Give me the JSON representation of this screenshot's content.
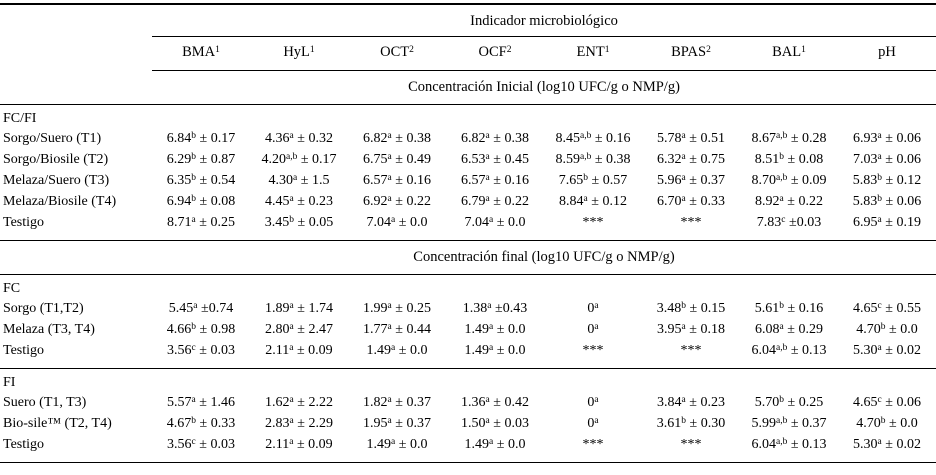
{
  "table": {
    "title": "Indicador microbiológico",
    "columns": [
      "BMA^1^",
      "HyL^1^",
      "OCT^2^",
      "OCF^2^",
      "ENT^1^",
      "BPAS^2^",
      "BAL^1^",
      "pH"
    ],
    "sections": [
      {
        "header": "Concentración Inicial (log10 UFC/g o NMP/g)",
        "groups": [
          {
            "label": "FC/FI",
            "rows": [
              {
                "label": "Sorgo/Suero (T1)",
                "cells": [
                  "6.84^b^ ± 0.17",
                  "4.36^a^ ± 0.32",
                  "6.82^a^ ± 0.38",
                  "6.82^a^ ± 0.38",
                  "8.45^a,b^ ± 0.16",
                  "5.78^a^ ± 0.51",
                  "8.67^a,b^ ± 0.28",
                  "6.93^a^ ± 0.06"
                ]
              },
              {
                "label": "Sorgo/Biosile (T2)",
                "cells": [
                  "6.29^b^ ± 0.87",
                  "4.20^a,b^ ± 0.17",
                  "6.75^a^ ± 0.49",
                  "6.53^a^ ± 0.45",
                  "8.59^a,b^ ± 0.38",
                  "6.32^a^ ± 0.75",
                  "8.51^b^ ± 0.08",
                  "7.03^a^ ± 0.06"
                ]
              },
              {
                "label": "Melaza/Suero (T3)",
                "cells": [
                  "6.35^b^ ± 0.54",
                  "4.30^a^ ± 1.5",
                  "6.57^a^ ± 0.16",
                  "6.57^a^ ± 0.16",
                  "7.65^b^ ± 0.57",
                  "5.96^a^ ± 0.37",
                  "8.70^a,b^ ± 0.09",
                  "5.83^b^ ± 0.12"
                ]
              },
              {
                "label": "Melaza/Biosile (T4)",
                "cells": [
                  "6.94^b^ ± 0.08",
                  "4.45^a^ ± 0.23",
                  "6.92^a^ ± 0.22",
                  "6.79^a^ ± 0.22",
                  "8.84^a^ ± 0.12",
                  "6.70^a^ ± 0.33",
                  "8.92^a^ ± 0.22",
                  "5.83^b^ ± 0.06"
                ]
              },
              {
                "label": "Testigo",
                "cells": [
                  "8.71^a^ ± 0.25",
                  "3.45^b^ ± 0.05",
                  "7.04^a^ ± 0.0",
                  "7.04^a^ ± 0.0",
                  "***",
                  "***",
                  "7.83^c^ ±0.03",
                  "6.95^a^ ± 0.19"
                ]
              }
            ]
          }
        ]
      },
      {
        "header": "Concentración final (log10 UFC/g o NMP/g)",
        "groups": [
          {
            "label": "FC",
            "rows": [
              {
                "label": "Sorgo (T1,T2)",
                "cells": [
                  "5.45^a^ ±0.74",
                  "1.89^a^ ± 1.74",
                  "1.99^a^ ± 0.25",
                  "1.38^a^ ±0.43",
                  "0^a^",
                  "3.48^b^ ± 0.15",
                  "5.61^b^ ± 0.16",
                  "4.65^c^ ± 0.55"
                ]
              },
              {
                "label": "Melaza (T3, T4)",
                "cells": [
                  "4.66^b^ ± 0.98",
                  "2.80^a^ ± 2.47",
                  "1.77^a^ ± 0.44",
                  "1.49^a^ ± 0.0",
                  "0^a^",
                  "3.95^a^ ± 0.18",
                  "6.08^a^ ± 0.29",
                  "4.70^b^ ± 0.0"
                ]
              },
              {
                "label": "Testigo",
                "cells": [
                  "3.56^c^ ± 0.03",
                  "2.11^a^ ± 0.09",
                  "1.49^a^ ± 0.0",
                  "1.49^a^ ± 0.0",
                  "***",
                  "***",
                  "6.04^a,b^ ± 0.13",
                  "5.30^a^ ± 0.02"
                ]
              }
            ]
          },
          {
            "label": "FI",
            "rows": [
              {
                "label": "Suero (T1, T3)",
                "cells": [
                  "5.57^a^ ± 1.46",
                  "1.62^a^ ± 2.22",
                  "1.82^a^ ± 0.37",
                  "1.36^a^ ± 0.42",
                  "0^a^",
                  "3.84^a^ ± 0.23",
                  "5.70^b^ ± 0.25",
                  "4.65^c^ ± 0.06"
                ]
              },
              {
                "label": "Bio-sile™ (T2, T4)",
                "cells": [
                  "4.67^b^ ± 0.33",
                  "2.83^a^ ± 2.29",
                  "1.95^a^ ± 0.37",
                  "1.50^a^ ± 0.03",
                  "0^a^",
                  "3.61^b^ ± 0.30",
                  "5.99^a,b^ ± 0.37",
                  "4.70^b^ ± 0.0"
                ]
              },
              {
                "label": "Testigo",
                "cells": [
                  "3.56^c^ ± 0.03",
                  "2.11^a^ ± 0.09",
                  "1.49^a^ ± 0.0",
                  "1.49^a^ ± 0.0",
                  "***",
                  "***",
                  "6.04^a,b^ ± 0.13",
                  "5.30^a^ ± 0.02"
                ]
              }
            ]
          }
        ]
      }
    ]
  }
}
